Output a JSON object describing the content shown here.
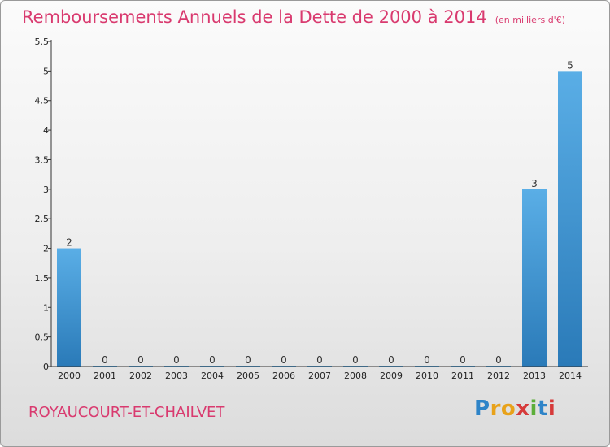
{
  "title": {
    "main": "Remboursements Annuels de la Dette de 2000 à 2014",
    "unit": "(en milliers d'€)"
  },
  "commune": "ROYAUCOURT-ET-CHAILVET",
  "logo": {
    "text": "Proxiti",
    "letters": [
      "P",
      "r",
      "o",
      "x",
      "i",
      "t",
      "i"
    ],
    "colors": [
      "#2e84c8",
      "#e8a21a",
      "#e8a21a",
      "#d63a3a",
      "#5cae3a",
      "#2e84c8",
      "#d63a3a"
    ]
  },
  "colors": {
    "accent": "#d93a6f",
    "bar_top": "#5aaee6",
    "bar_bottom": "#2a7ab8",
    "axis": "#333333"
  },
  "chart_data": {
    "type": "bar",
    "title": "Remboursements Annuels de la Dette de 2000 à 2014",
    "ylabel": "en milliers d'€",
    "xlabel": "",
    "categories": [
      "2000",
      "2001",
      "2002",
      "2003",
      "2004",
      "2005",
      "2006",
      "2007",
      "2008",
      "2009",
      "2010",
      "2011",
      "2012",
      "2013",
      "2014"
    ],
    "values": [
      2,
      0,
      0,
      0,
      0,
      0,
      0,
      0,
      0,
      0,
      0,
      0,
      0,
      3,
      5
    ],
    "data_labels": [
      "2",
      "0",
      "0",
      "0",
      "0",
      "0",
      "0",
      "0",
      "0",
      "0",
      "0",
      "0",
      "0",
      "3",
      "5"
    ],
    "ylim": [
      0,
      5.5
    ],
    "yticks": [
      0,
      0.5,
      1,
      1.5,
      2,
      2.5,
      3,
      3.5,
      4,
      4.5,
      5,
      5.5
    ],
    "ytick_labels": [
      "0",
      "0.5",
      "1",
      "1.5",
      "2",
      "2.5",
      "3",
      "3.5",
      "4",
      "4.5",
      "5",
      "5.5"
    ],
    "grid": false,
    "legend": "none"
  }
}
